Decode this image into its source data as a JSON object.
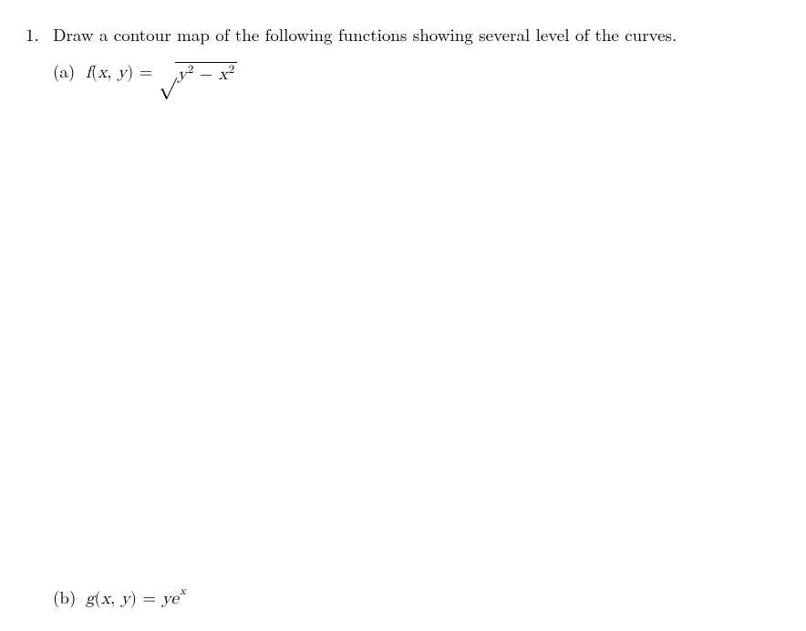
{
  "problem": {
    "number": "1.",
    "text": "Draw a contour map of the following functions showing several level of the curves."
  },
  "parts": {
    "a_label": "(a)",
    "a_fn": "f",
    "a_args_open": "(",
    "a_arg1": "x",
    "a_comma": ",",
    "a_arg2": "y",
    "a_args_close": ")",
    "a_eq": "=",
    "a_sqrt": "√",
    "a_y": "y",
    "a_y_exp": "2",
    "a_minus": "−",
    "a_x": "x",
    "a_x_exp": "2",
    "b_label": "(b)",
    "b_fn": "g",
    "b_args_open": "(",
    "b_arg1": "x",
    "b_comma": ",",
    "b_arg2": "y",
    "b_args_close": ")",
    "b_eq": "=",
    "b_y": "y",
    "b_e": "e",
    "b_e_exp": "x"
  }
}
